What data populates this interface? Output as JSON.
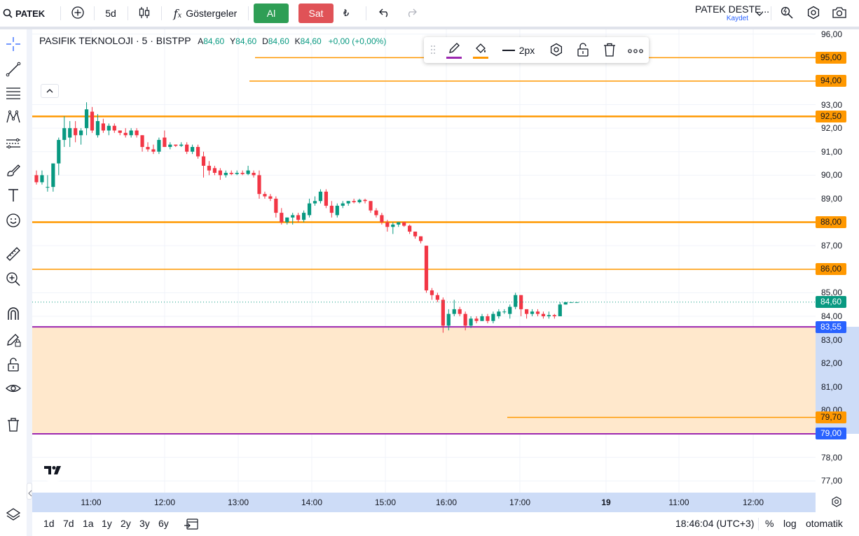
{
  "topbar": {
    "symbol_search": "PATEK",
    "interval": "5d",
    "indicators_label": "Göstergeler",
    "buy_label": "Al",
    "sell_label": "Sat",
    "currency_symbol": "₺",
    "layout_name": "PATEK DESTE...",
    "layout_save_label": "Kaydet"
  },
  "legend": {
    "title": "PASIFIK TEKNOLOJI · 5 · BISTPP",
    "open_label": "A",
    "open_value": "84,60",
    "high_label": "Y",
    "high_value": "84,60",
    "low_label": "D",
    "low_value": "84,60",
    "close_label": "K",
    "close_value": "84,60",
    "change": "+0,00 (+0,00%)"
  },
  "drawing_toolbar": {
    "line_width_label": "2px",
    "line_color": "#9c27b0",
    "fill_color": "#ff9800"
  },
  "price_axis": {
    "ticks": [
      "96,00",
      "93,00",
      "92,00",
      "91,00",
      "90,00",
      "89,00",
      "87,00",
      "85,00",
      "84,00",
      "83,00",
      "82,00",
      "81,00",
      "80,00",
      "78,00",
      "77,00"
    ],
    "badges": [
      {
        "label": "95,00",
        "bg": "#ff9800",
        "fg": "#131722"
      },
      {
        "label": "94,00",
        "bg": "#ff9800",
        "fg": "#131722"
      },
      {
        "label": "92,50",
        "bg": "#ff9800",
        "fg": "#131722"
      },
      {
        "label": "88,00",
        "bg": "#ff9800",
        "fg": "#131722"
      },
      {
        "label": "86,00",
        "bg": "#ff9800",
        "fg": "#131722"
      },
      {
        "label": "84,60",
        "bg": "#089981",
        "fg": "#ffffff"
      },
      {
        "label": "83,55",
        "bg": "#2962ff",
        "fg": "#ffffff"
      },
      {
        "label": "79,70",
        "bg": "#ff9800",
        "fg": "#131722"
      },
      {
        "label": "79,00",
        "bg": "#2962ff",
        "fg": "#ffffff"
      }
    ]
  },
  "time_axis": {
    "ticks": [
      "11:00",
      "12:00",
      "13:00",
      "14:00",
      "15:00",
      "16:00",
      "17:00",
      "19",
      "11:00",
      "12:00"
    ]
  },
  "bottombar": {
    "ranges": [
      "1d",
      "7d",
      "1a",
      "1y",
      "2y",
      "3y",
      "6y"
    ],
    "clock": "18:46:04 (UTC+3)",
    "percent_label": "%",
    "log_label": "log",
    "auto_label": "otomatik"
  },
  "colors": {
    "up": "#089981",
    "down": "#f23645",
    "support_line": "#ff9800",
    "zone_border": "#9c27b0",
    "zone_fill": "#ffe8cc"
  },
  "chart_data": {
    "type": "candlestick",
    "y_range": [
      76.5,
      96.2
    ],
    "x_range_hours": [
      10.6,
      21.3
    ],
    "last_price": 84.6,
    "horizontal_levels": [
      95.0,
      94.0,
      92.5,
      88.0,
      86.0,
      79.7
    ],
    "zone": {
      "top": 83.55,
      "bottom": 79.0
    },
    "candles": [
      {
        "o": 90.0,
        "h": 90.2,
        "l": 89.6,
        "c": 89.7
      },
      {
        "o": 89.7,
        "h": 90.2,
        "l": 89.6,
        "c": 90.0
      },
      {
        "o": 89.5,
        "h": 90.0,
        "l": 89.3,
        "c": 89.5
      },
      {
        "o": 89.5,
        "h": 90.5,
        "l": 89.3,
        "c": 90.5
      },
      {
        "o": 90.5,
        "h": 91.6,
        "l": 90.0,
        "c": 91.5
      },
      {
        "o": 91.5,
        "h": 92.5,
        "l": 91.2,
        "c": 92.0
      },
      {
        "o": 91.6,
        "h": 92.3,
        "l": 91.2,
        "c": 92.0
      },
      {
        "o": 92.0,
        "h": 92.3,
        "l": 91.4,
        "c": 91.7
      },
      {
        "o": 91.7,
        "h": 92.0,
        "l": 91.3,
        "c": 91.9
      },
      {
        "o": 92.0,
        "h": 93.1,
        "l": 91.7,
        "c": 92.8
      },
      {
        "o": 92.7,
        "h": 92.9,
        "l": 91.8,
        "c": 91.9
      },
      {
        "o": 91.7,
        "h": 92.6,
        "l": 91.6,
        "c": 92.3
      },
      {
        "o": 92.2,
        "h": 92.4,
        "l": 91.8,
        "c": 91.9
      },
      {
        "o": 91.9,
        "h": 92.2,
        "l": 91.7,
        "c": 92.1
      },
      {
        "o": 92.1,
        "h": 92.2,
        "l": 91.8,
        "c": 91.9
      },
      {
        "o": 91.9,
        "h": 91.9,
        "l": 91.7,
        "c": 91.8
      },
      {
        "o": 91.8,
        "h": 92.0,
        "l": 91.6,
        "c": 91.7
      },
      {
        "o": 91.7,
        "h": 92.0,
        "l": 91.6,
        "c": 91.9
      },
      {
        "o": 91.9,
        "h": 92.0,
        "l": 91.6,
        "c": 91.7
      },
      {
        "o": 91.7,
        "h": 91.7,
        "l": 91.0,
        "c": 91.2
      },
      {
        "o": 91.2,
        "h": 91.4,
        "l": 91.0,
        "c": 91.1
      },
      {
        "o": 91.1,
        "h": 91.3,
        "l": 90.9,
        "c": 91.0
      },
      {
        "o": 91.0,
        "h": 91.6,
        "l": 90.9,
        "c": 91.5
      },
      {
        "o": 91.6,
        "h": 91.9,
        "l": 91.2,
        "c": 91.2
      },
      {
        "o": 91.2,
        "h": 91.4,
        "l": 91.1,
        "c": 91.3
      },
      {
        "o": 91.3,
        "h": 91.3,
        "l": 91.2,
        "c": 91.25
      },
      {
        "o": 91.25,
        "h": 91.4,
        "l": 91.2,
        "c": 91.3
      },
      {
        "o": 91.3,
        "h": 91.4,
        "l": 90.9,
        "c": 91.0
      },
      {
        "o": 91.0,
        "h": 91.3,
        "l": 90.9,
        "c": 91.2
      },
      {
        "o": 91.2,
        "h": 91.3,
        "l": 90.7,
        "c": 90.8
      },
      {
        "o": 90.8,
        "h": 91.0,
        "l": 89.9,
        "c": 90.4
      },
      {
        "o": 90.4,
        "h": 90.6,
        "l": 90.0,
        "c": 90.2
      },
      {
        "o": 90.3,
        "h": 90.4,
        "l": 90.0,
        "c": 90.1
      },
      {
        "o": 90.2,
        "h": 90.3,
        "l": 89.8,
        "c": 90.0
      },
      {
        "o": 90.0,
        "h": 90.2,
        "l": 89.9,
        "c": 90.1
      },
      {
        "o": 90.1,
        "h": 90.2,
        "l": 90.0,
        "c": 90.05
      },
      {
        "o": 90.05,
        "h": 90.2,
        "l": 90.0,
        "c": 90.1
      },
      {
        "o": 90.1,
        "h": 90.2,
        "l": 90.0,
        "c": 90.05
      },
      {
        "o": 90.05,
        "h": 90.4,
        "l": 90.0,
        "c": 90.2
      },
      {
        "o": 90.1,
        "h": 90.2,
        "l": 89.9,
        "c": 90.0
      },
      {
        "o": 90.0,
        "h": 90.2,
        "l": 89.0,
        "c": 89.2
      },
      {
        "o": 89.2,
        "h": 89.3,
        "l": 89.0,
        "c": 89.1
      },
      {
        "o": 89.1,
        "h": 89.2,
        "l": 88.9,
        "c": 89.0
      },
      {
        "o": 89.0,
        "h": 89.1,
        "l": 88.2,
        "c": 88.4
      },
      {
        "o": 88.4,
        "h": 88.6,
        "l": 87.9,
        "c": 88.0
      },
      {
        "o": 88.0,
        "h": 88.2,
        "l": 87.9,
        "c": 88.2
      },
      {
        "o": 88.2,
        "h": 88.4,
        "l": 87.9,
        "c": 88.3
      },
      {
        "o": 88.3,
        "h": 88.4,
        "l": 88.0,
        "c": 88.1
      },
      {
        "o": 88.1,
        "h": 88.5,
        "l": 88.0,
        "c": 88.4
      },
      {
        "o": 88.3,
        "h": 89.0,
        "l": 88.2,
        "c": 88.8
      },
      {
        "o": 88.8,
        "h": 89.1,
        "l": 88.7,
        "c": 88.9
      },
      {
        "o": 88.9,
        "h": 89.4,
        "l": 88.8,
        "c": 89.3
      },
      {
        "o": 89.3,
        "h": 89.4,
        "l": 88.6,
        "c": 88.7
      },
      {
        "o": 88.7,
        "h": 88.9,
        "l": 88.2,
        "c": 88.4
      },
      {
        "o": 88.3,
        "h": 88.8,
        "l": 88.2,
        "c": 88.7
      },
      {
        "o": 88.7,
        "h": 88.9,
        "l": 88.6,
        "c": 88.8
      },
      {
        "o": 88.8,
        "h": 88.9,
        "l": 88.7,
        "c": 88.9
      },
      {
        "o": 88.9,
        "h": 89.0,
        "l": 88.8,
        "c": 88.85
      },
      {
        "o": 88.85,
        "h": 89.0,
        "l": 88.8,
        "c": 88.95
      },
      {
        "o": 88.95,
        "h": 89.0,
        "l": 88.8,
        "c": 88.9
      },
      {
        "o": 88.9,
        "h": 88.9,
        "l": 88.4,
        "c": 88.5
      },
      {
        "o": 88.5,
        "h": 88.6,
        "l": 88.2,
        "c": 88.3
      },
      {
        "o": 88.3,
        "h": 88.4,
        "l": 87.9,
        "c": 88.0
      },
      {
        "o": 88.0,
        "h": 88.1,
        "l": 87.6,
        "c": 87.8
      },
      {
        "o": 87.8,
        "h": 88.0,
        "l": 87.5,
        "c": 87.9
      },
      {
        "o": 87.9,
        "h": 88.0,
        "l": 87.8,
        "c": 88.0
      },
      {
        "o": 88.0,
        "h": 88.0,
        "l": 87.8,
        "c": 87.85
      },
      {
        "o": 87.85,
        "h": 87.9,
        "l": 87.5,
        "c": 87.6
      },
      {
        "o": 87.6,
        "h": 87.6,
        "l": 87.3,
        "c": 87.4
      },
      {
        "o": 87.4,
        "h": 87.4,
        "l": 87.1,
        "c": 87.2
      },
      {
        "o": 87.0,
        "h": 87.0,
        "l": 85.0,
        "c": 85.1
      },
      {
        "o": 85.1,
        "h": 85.2,
        "l": 84.7,
        "c": 84.9
      },
      {
        "o": 84.9,
        "h": 85.0,
        "l": 84.6,
        "c": 84.7
      },
      {
        "o": 84.7,
        "h": 84.8,
        "l": 83.3,
        "c": 83.6
      },
      {
        "o": 83.6,
        "h": 84.3,
        "l": 83.4,
        "c": 84.1
      },
      {
        "o": 84.1,
        "h": 84.7,
        "l": 84.0,
        "c": 84.3
      },
      {
        "o": 84.3,
        "h": 84.4,
        "l": 84.0,
        "c": 84.1
      },
      {
        "o": 84.1,
        "h": 84.2,
        "l": 83.4,
        "c": 83.6
      },
      {
        "o": 83.6,
        "h": 84.0,
        "l": 83.5,
        "c": 83.9
      },
      {
        "o": 83.9,
        "h": 84.0,
        "l": 83.7,
        "c": 83.8
      },
      {
        "o": 83.8,
        "h": 84.1,
        "l": 83.8,
        "c": 84.0
      },
      {
        "o": 84.0,
        "h": 84.1,
        "l": 83.7,
        "c": 83.8
      },
      {
        "o": 83.8,
        "h": 84.2,
        "l": 83.7,
        "c": 84.1
      },
      {
        "o": 84.0,
        "h": 84.3,
        "l": 83.9,
        "c": 84.2
      },
      {
        "o": 84.2,
        "h": 84.3,
        "l": 84.1,
        "c": 84.2
      },
      {
        "o": 84.1,
        "h": 84.5,
        "l": 83.9,
        "c": 84.4
      },
      {
        "o": 84.4,
        "h": 85.0,
        "l": 84.3,
        "c": 84.9
      },
      {
        "o": 84.9,
        "h": 84.9,
        "l": 84.0,
        "c": 84.3
      },
      {
        "o": 84.3,
        "h": 84.3,
        "l": 83.9,
        "c": 84.1
      },
      {
        "o": 84.1,
        "h": 84.3,
        "l": 84.0,
        "c": 84.2
      },
      {
        "o": 84.2,
        "h": 84.3,
        "l": 84.0,
        "c": 84.1
      },
      {
        "o": 84.1,
        "h": 84.2,
        "l": 83.9,
        "c": 84.0
      },
      {
        "o": 84.0,
        "h": 84.2,
        "l": 83.9,
        "c": 84.05
      },
      {
        "o": 84.05,
        "h": 84.1,
        "l": 83.9,
        "c": 84.0
      },
      {
        "o": 84.0,
        "h": 84.6,
        "l": 84.0,
        "c": 84.5
      },
      {
        "o": 84.5,
        "h": 84.6,
        "l": 84.5,
        "c": 84.6
      },
      {
        "o": 84.6,
        "h": 84.6,
        "l": 84.6,
        "c": 84.6
      },
      {
        "o": 84.6,
        "h": 84.6,
        "l": 84.6,
        "c": 84.6
      }
    ]
  }
}
